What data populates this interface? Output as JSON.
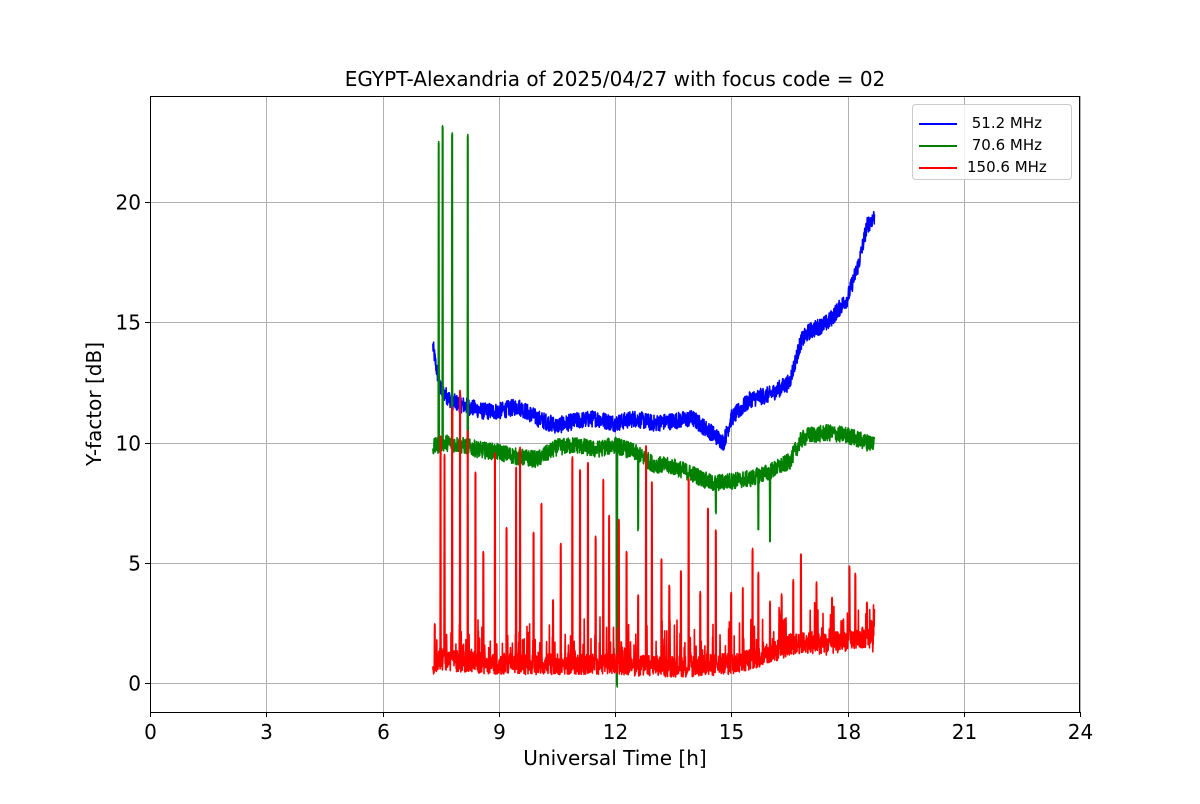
{
  "chart_data": {
    "type": "line",
    "title": "EGYPT-Alexandria of 2025/04/27 with focus code = 02",
    "xlabel": "Universal Time [h]",
    "ylabel": "Y-factor [dB]",
    "xlim": [
      0,
      24
    ],
    "ylim": [
      -1.2,
      24.4
    ],
    "xticks": [
      0,
      3,
      6,
      9,
      12,
      15,
      18,
      21,
      24
    ],
    "yticks": [
      0,
      5,
      10,
      15,
      20
    ],
    "grid": true,
    "legend_position": "top-right",
    "series": [
      {
        "name": " 51.2 MHz",
        "color": "#0000ff",
        "noise": 0.35,
        "spikes": [],
        "x": [
          7.3,
          7.4,
          7.5,
          7.8,
          8.2,
          8.6,
          9.0,
          9.5,
          10.0,
          10.5,
          11.0,
          11.5,
          12.0,
          12.5,
          13.0,
          13.5,
          14.0,
          14.5,
          14.8,
          15.0,
          15.5,
          16.0,
          16.5,
          16.8,
          17.0,
          17.5,
          18.0,
          18.3,
          18.5,
          18.7
        ],
        "y": [
          14.0,
          13.0,
          12.2,
          11.7,
          11.5,
          11.3,
          11.3,
          11.5,
          11.0,
          10.7,
          10.9,
          11.0,
          10.8,
          11.0,
          10.8,
          10.9,
          11.0,
          10.4,
          10.0,
          11.0,
          11.8,
          12.0,
          12.5,
          14.2,
          14.6,
          15.0,
          16.0,
          17.5,
          19.0,
          19.4
        ]
      },
      {
        "name": " 70.6 MHz",
        "color": "#008000",
        "noise": 0.35,
        "spikes": [
          [
            7.45,
            22.5
          ],
          [
            7.55,
            23.2
          ],
          [
            7.8,
            22.9
          ],
          [
            8.2,
            22.8
          ],
          [
            12.05,
            0.0
          ],
          [
            12.6,
            6.5
          ],
          [
            14.6,
            7.2
          ],
          [
            15.7,
            6.5
          ],
          [
            16.0,
            6.0
          ]
        ],
        "x": [
          7.3,
          7.6,
          8.0,
          8.5,
          9.0,
          9.5,
          10.0,
          10.5,
          11.0,
          11.5,
          12.0,
          12.5,
          13.0,
          13.5,
          14.0,
          14.5,
          15.0,
          15.5,
          16.0,
          16.5,
          16.8,
          17.0,
          17.5,
          18.0,
          18.5,
          18.7
        ],
        "y": [
          9.8,
          10.0,
          9.9,
          9.7,
          9.6,
          9.4,
          9.3,
          9.8,
          9.9,
          9.7,
          9.9,
          9.6,
          9.1,
          9.0,
          8.7,
          8.3,
          8.4,
          8.5,
          8.8,
          9.2,
          10.1,
          10.3,
          10.4,
          10.3,
          10.0,
          10.0
        ]
      },
      {
        "name": "150.6 MHz",
        "color": "#ff0000",
        "noise": 0.45,
        "spikes": [
          [
            7.35,
            2.5
          ],
          [
            7.5,
            10.3
          ],
          [
            7.6,
            9.5
          ],
          [
            7.8,
            11.5
          ],
          [
            8.0,
            12.2
          ],
          [
            8.2,
            10.5
          ],
          [
            8.4,
            8.8
          ],
          [
            8.6,
            5.5
          ],
          [
            8.9,
            9.6
          ],
          [
            9.2,
            6.5
          ],
          [
            9.45,
            9.0
          ],
          [
            9.55,
            9.8
          ],
          [
            9.9,
            6.3
          ],
          [
            10.1,
            7.5
          ],
          [
            10.4,
            3.5
          ],
          [
            10.6,
            5.8
          ],
          [
            10.9,
            9.4
          ],
          [
            11.1,
            8.9
          ],
          [
            11.3,
            9.2
          ],
          [
            11.5,
            6.1
          ],
          [
            11.7,
            8.5
          ],
          [
            11.85,
            7.0
          ],
          [
            12.1,
            6.8
          ],
          [
            12.3,
            5.5
          ],
          [
            12.6,
            3.7
          ],
          [
            12.8,
            9.9
          ],
          [
            12.95,
            8.4
          ],
          [
            13.2,
            5.2
          ],
          [
            13.4,
            4.1
          ],
          [
            13.7,
            4.7
          ],
          [
            13.9,
            8.5
          ],
          [
            14.2,
            3.8
          ],
          [
            14.4,
            7.3
          ],
          [
            14.6,
            6.4
          ],
          [
            15.0,
            3.8
          ],
          [
            15.3,
            4.0
          ],
          [
            15.55,
            5.6
          ],
          [
            15.7,
            4.6
          ],
          [
            16.0,
            3.4
          ],
          [
            16.3,
            3.7
          ],
          [
            16.6,
            4.3
          ],
          [
            16.8,
            5.4
          ],
          [
            17.2,
            4.2
          ],
          [
            17.6,
            3.6
          ],
          [
            18.05,
            4.9
          ],
          [
            18.2,
            4.6
          ],
          [
            18.5,
            3.4
          ],
          [
            18.7,
            3.2
          ]
        ],
        "x": [
          7.3,
          7.5,
          8.0,
          9.0,
          10.0,
          11.0,
          12.0,
          13.0,
          14.0,
          15.0,
          15.5,
          16.0,
          16.5,
          17.0,
          17.5,
          18.0,
          18.5,
          18.7
        ],
        "y": [
          0.8,
          1.0,
          0.9,
          0.8,
          0.8,
          0.8,
          0.8,
          0.7,
          0.7,
          0.8,
          1.0,
          1.2,
          1.6,
          1.7,
          1.6,
          1.8,
          1.9,
          1.7
        ]
      }
    ]
  }
}
